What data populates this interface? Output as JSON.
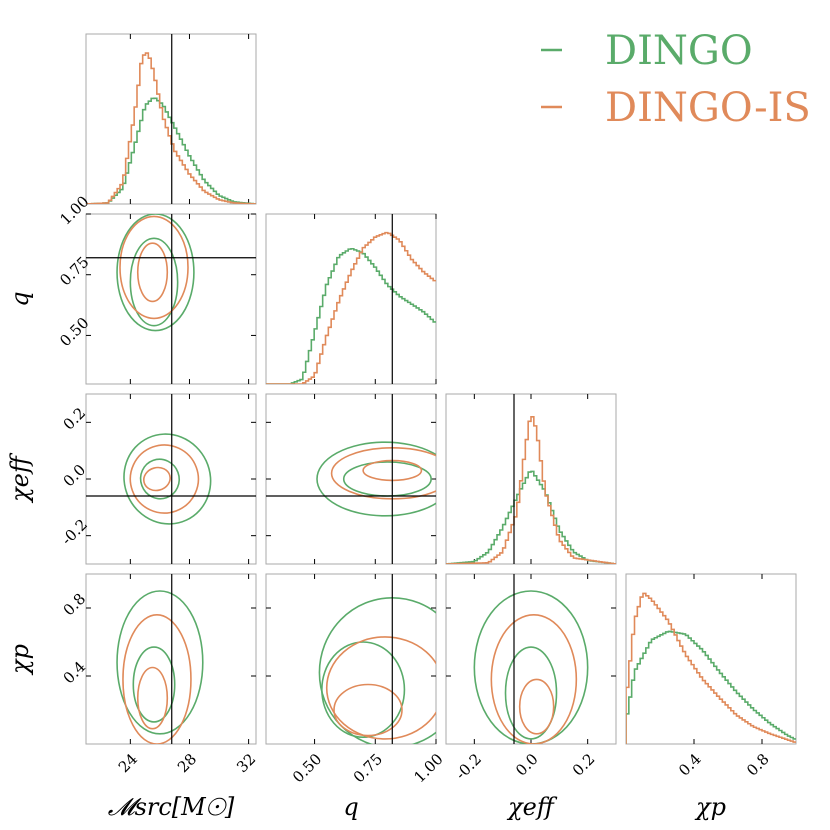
{
  "chart_data": {
    "type": "corner",
    "legend": {
      "position": "top-right",
      "entries": [
        {
          "name": "DINGO",
          "color": "#5aab6a"
        },
        {
          "name": "DINGO-IS",
          "color": "#e08a5a"
        }
      ]
    },
    "params": [
      {
        "key": "mc",
        "label": "𝓜src[M☉]",
        "range": [
          21,
          32.5
        ],
        "ticks": [
          24,
          28,
          32
        ],
        "tick_labels": [
          "24",
          "28",
          "32"
        ],
        "truth": 26.8
      },
      {
        "key": "q",
        "label": "q",
        "range": [
          0.3,
          1.0
        ],
        "ticks": [
          0.5,
          0.75,
          1.0
        ],
        "tick_labels": [
          "0.50",
          "0.75",
          "1.00"
        ],
        "truth": 0.82
      },
      {
        "key": "chi_eff",
        "label": "χeff",
        "range": [
          -0.3,
          0.3
        ],
        "ticks": [
          -0.2,
          0.0,
          0.2
        ],
        "tick_labels": [
          "-0.2",
          "0.0",
          "0.2"
        ],
        "truth": -0.06
      },
      {
        "key": "chi_p",
        "label": "χp",
        "range": [
          0.0,
          1.0
        ],
        "ticks": [
          0.4,
          0.8
        ],
        "tick_labels": [
          "0.4",
          "0.8"
        ],
        "truth": null
      }
    ],
    "marginals": [
      {
        "param": "mc",
        "series": [
          {
            "name": "DINGO",
            "x": [
              21,
              22.5,
              23.5,
              24.3,
              25.0,
              25.6,
              26.2,
              27.0,
              28.0,
              29.0,
              30.0,
              31.0,
              32.5
            ],
            "y": [
              0,
              0.01,
              0.15,
              0.55,
              0.92,
              1.0,
              0.93,
              0.72,
              0.45,
              0.22,
              0.08,
              0.02,
              0
            ]
          },
          {
            "name": "DINGO-IS",
            "x": [
              21,
              22.5,
              23.5,
              24.3,
              24.8,
              25.2,
              25.6,
              26.2,
              27.0,
              28.0,
              29.0,
              30.0,
              31.0,
              32.5
            ],
            "y": [
              0,
              0.01,
              0.2,
              0.85,
              1.38,
              1.42,
              1.22,
              0.82,
              0.5,
              0.28,
              0.12,
              0.04,
              0.01,
              0
            ]
          }
        ]
      },
      {
        "param": "q",
        "series": [
          {
            "name": "DINGO",
            "x": [
              0.3,
              0.4,
              0.45,
              0.5,
              0.55,
              0.6,
              0.65,
              0.7,
              0.75,
              0.8,
              0.85,
              0.9,
              0.95,
              1.0
            ],
            "y": [
              0,
              0.0,
              0.03,
              0.32,
              0.62,
              0.8,
              0.85,
              0.82,
              0.73,
              0.62,
              0.55,
              0.5,
              0.45,
              0.38
            ]
          },
          {
            "name": "DINGO-IS",
            "x": [
              0.3,
              0.45,
              0.5,
              0.55,
              0.6,
              0.65,
              0.7,
              0.75,
              0.8,
              0.85,
              0.9,
              0.95,
              1.0
            ],
            "y": [
              0,
              0.0,
              0.05,
              0.3,
              0.52,
              0.7,
              0.85,
              0.92,
              0.95,
              0.9,
              0.78,
              0.7,
              0.64
            ]
          }
        ]
      },
      {
        "param": "chi_eff",
        "series": [
          {
            "name": "DINGO",
            "x": [
              -0.3,
              -0.2,
              -0.15,
              -0.1,
              -0.05,
              0.0,
              0.05,
              0.1,
              0.15,
              0.2,
              0.3
            ],
            "y": [
              0,
              0.02,
              0.1,
              0.3,
              0.55,
              0.78,
              0.6,
              0.28,
              0.1,
              0.03,
              0
            ]
          },
          {
            "name": "DINGO-IS",
            "x": [
              -0.3,
              -0.15,
              -0.1,
              -0.05,
              -0.02,
              0.0,
              0.02,
              0.05,
              0.1,
              0.15,
              0.3
            ],
            "y": [
              0,
              0.01,
              0.1,
              0.42,
              0.95,
              1.25,
              1.1,
              0.6,
              0.2,
              0.05,
              0
            ]
          }
        ]
      },
      {
        "param": "chi_p",
        "series": [
          {
            "name": "DINGO",
            "x": [
              0.0,
              0.05,
              0.15,
              0.25,
              0.35,
              0.45,
              0.55,
              0.65,
              0.75,
              0.85,
              0.95,
              1.0
            ],
            "y": [
              0.15,
              0.5,
              0.72,
              0.78,
              0.76,
              0.65,
              0.5,
              0.36,
              0.24,
              0.14,
              0.06,
              0.03
            ]
          },
          {
            "name": "DINGO-IS",
            "x": [
              0.0,
              0.05,
              0.1,
              0.15,
              0.25,
              0.35,
              0.45,
              0.55,
              0.65,
              0.75,
              0.85,
              0.95,
              1.0
            ],
            "y": [
              0.3,
              0.85,
              1.05,
              1.0,
              0.85,
              0.62,
              0.45,
              0.32,
              0.2,
              0.12,
              0.07,
              0.03,
              0.01
            ]
          }
        ]
      }
    ],
    "pairs": [
      {
        "x": "mc",
        "y": "q",
        "series": [
          {
            "name": "DINGO",
            "contours": [
              {
                "cx": 25.7,
                "cy": 0.76,
                "rx": 2.6,
                "ry": 0.24,
                "rot": 0
              },
              {
                "cx": 25.6,
                "cy": 0.72,
                "rx": 1.6,
                "ry": 0.18,
                "rot": 0
              }
            ]
          },
          {
            "name": "DINGO-IS",
            "contours": [
              {
                "cx": 25.6,
                "cy": 0.78,
                "rx": 2.3,
                "ry": 0.21,
                "rot": 0
              },
              {
                "cx": 25.5,
                "cy": 0.76,
                "rx": 1.0,
                "ry": 0.12,
                "rot": 0
              }
            ]
          }
        ]
      },
      {
        "x": "mc",
        "y": "chi_eff",
        "series": [
          {
            "name": "DINGO",
            "contours": [
              {
                "cx": 26.5,
                "cy": 0.0,
                "rx": 2.9,
                "ry": 0.16,
                "rot": -25
              },
              {
                "cx": 26.0,
                "cy": 0.0,
                "rx": 1.3,
                "ry": 0.07,
                "rot": -20
              }
            ]
          },
          {
            "name": "DINGO-IS",
            "contours": [
              {
                "cx": 26.3,
                "cy": 0.0,
                "rx": 2.3,
                "ry": 0.12,
                "rot": -20
              },
              {
                "cx": 25.8,
                "cy": 0.0,
                "rx": 0.9,
                "ry": 0.04,
                "rot": -15
              }
            ]
          }
        ]
      },
      {
        "x": "q",
        "y": "chi_eff",
        "series": [
          {
            "name": "DINGO",
            "contours": [
              {
                "cx": 0.79,
                "cy": 0.0,
                "rx": 0.28,
                "ry": 0.13,
                "rot": 0
              },
              {
                "cx": 0.8,
                "cy": 0.0,
                "rx": 0.18,
                "ry": 0.06,
                "rot": 0
              }
            ]
          },
          {
            "name": "DINGO-IS",
            "contours": [
              {
                "cx": 0.82,
                "cy": 0.02,
                "rx": 0.25,
                "ry": 0.09,
                "rot": 0
              },
              {
                "cx": 0.82,
                "cy": 0.03,
                "rx": 0.12,
                "ry": 0.035,
                "rot": 0
              }
            ]
          }
        ]
      },
      {
        "x": "mc",
        "y": "chi_p",
        "series": [
          {
            "name": "DINGO",
            "contours": [
              {
                "cx": 26.0,
                "cy": 0.48,
                "rx": 2.9,
                "ry": 0.42,
                "rot": 0
              },
              {
                "cx": 25.6,
                "cy": 0.35,
                "rx": 1.4,
                "ry": 0.22,
                "rot": 0
              }
            ]
          },
          {
            "name": "DINGO-IS",
            "contours": [
              {
                "cx": 25.8,
                "cy": 0.38,
                "rx": 2.3,
                "ry": 0.38,
                "rot": 0
              },
              {
                "cx": 25.5,
                "cy": 0.27,
                "rx": 1.0,
                "ry": 0.18,
                "rot": 0
              }
            ]
          }
        ]
      },
      {
        "x": "q",
        "y": "chi_p",
        "series": [
          {
            "name": "DINGO",
            "contours": [
              {
                "cx": 0.82,
                "cy": 0.42,
                "rx": 0.3,
                "ry": 0.44,
                "rot": 0
              },
              {
                "cx": 0.7,
                "cy": 0.32,
                "rx": 0.17,
                "ry": 0.28,
                "rot": 0
              }
            ]
          },
          {
            "name": "DINGO-IS",
            "contours": [
              {
                "cx": 0.79,
                "cy": 0.33,
                "rx": 0.24,
                "ry": 0.3,
                "rot": 0
              },
              {
                "cx": 0.72,
                "cy": 0.2,
                "rx": 0.14,
                "ry": 0.15,
                "rot": 0
              }
            ]
          }
        ]
      },
      {
        "x": "chi_eff",
        "y": "chi_p",
        "series": [
          {
            "name": "DINGO",
            "contours": [
              {
                "cx": 0.0,
                "cy": 0.45,
                "rx": 0.2,
                "ry": 0.45,
                "rot": 0
              },
              {
                "cx": 0.0,
                "cy": 0.3,
                "rx": 0.09,
                "ry": 0.27,
                "rot": 0
              }
            ]
          },
          {
            "name": "DINGO-IS",
            "contours": [
              {
                "cx": 0.01,
                "cy": 0.38,
                "rx": 0.15,
                "ry": 0.38,
                "rot": 0
              },
              {
                "cx": 0.02,
                "cy": 0.22,
                "rx": 0.06,
                "ry": 0.16,
                "rot": 0
              }
            ]
          }
        ]
      }
    ]
  }
}
